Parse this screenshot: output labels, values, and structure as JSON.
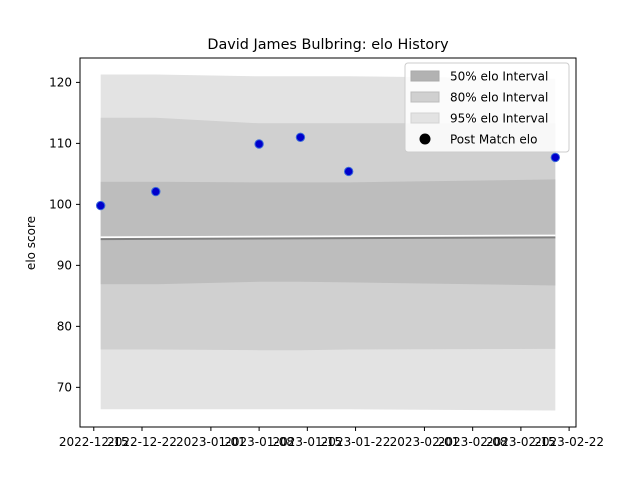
{
  "chart_data": {
    "type": "line",
    "title": "David James Bulbring: elo History",
    "xlabel": "",
    "ylabel": "elo score",
    "x_ticks": [
      "2022-12-15",
      "2022-12-22",
      "2023-01-01",
      "2023-01-08",
      "2023-01-15",
      "2023-01-22",
      "2023-02-01",
      "2023-02-08",
      "2023-02-15",
      "2023-02-22"
    ],
    "xlim": [
      "2022-12-13",
      "2023-02-23"
    ],
    "ylim": [
      63.5,
      124
    ],
    "y_ticks": [
      70,
      80,
      90,
      100,
      110,
      120
    ],
    "grid": false,
    "legend_position": "top-right",
    "legend": [
      {
        "label": "50% elo Interval",
        "kind": "band50"
      },
      {
        "label": "80% elo Interval",
        "kind": "band80"
      },
      {
        "label": "95% elo Interval",
        "kind": "band95"
      },
      {
        "label": "Post Match elo",
        "kind": "point"
      }
    ],
    "series": [
      {
        "name": "95% elo Interval",
        "x": [
          "2022-12-16",
          "2022-12-24",
          "2023-01-08",
          "2023-01-14",
          "2023-01-21",
          "2023-02-20"
        ],
        "upper": [
          121.3,
          121.3,
          121.0,
          121.0,
          121.0,
          120.6
        ],
        "lower": [
          66.4,
          66.4,
          66.4,
          66.4,
          66.4,
          66.2
        ]
      },
      {
        "name": "80% elo Interval",
        "x": [
          "2022-12-16",
          "2022-12-24",
          "2023-01-08",
          "2023-01-14",
          "2023-01-21",
          "2023-02-20"
        ],
        "upper": [
          114.2,
          114.2,
          113.3,
          113.3,
          113.3,
          113.3
        ],
        "lower": [
          76.2,
          76.2,
          76.1,
          76.1,
          76.2,
          76.3
        ]
      },
      {
        "name": "50% elo Interval",
        "x": [
          "2022-12-16",
          "2022-12-24",
          "2023-01-08",
          "2023-01-14",
          "2023-01-21",
          "2023-02-20"
        ],
        "upper": [
          103.7,
          103.7,
          103.6,
          103.6,
          103.6,
          104.1
        ],
        "lower": [
          86.9,
          86.9,
          87.3,
          87.3,
          87.2,
          86.7
        ]
      },
      {
        "name": "elo mean",
        "x": [
          "2022-12-16",
          "2023-02-20"
        ],
        "y": [
          94.3,
          94.6
        ]
      },
      {
        "name": "Post Match elo",
        "x": [
          "2022-12-16",
          "2022-12-24",
          "2023-01-08",
          "2023-01-14",
          "2023-01-21",
          "2023-02-20"
        ],
        "y": [
          99.8,
          102.1,
          109.9,
          111.0,
          105.4,
          107.7
        ]
      }
    ],
    "colors": {
      "band95": "#e3e3e3",
      "band80": "#d0d0d0",
      "band50": "#bdbdbd",
      "mean_line": "#7f7f7f",
      "point_fill": "#0000cc",
      "point_edge": "#3b6bd8"
    }
  }
}
